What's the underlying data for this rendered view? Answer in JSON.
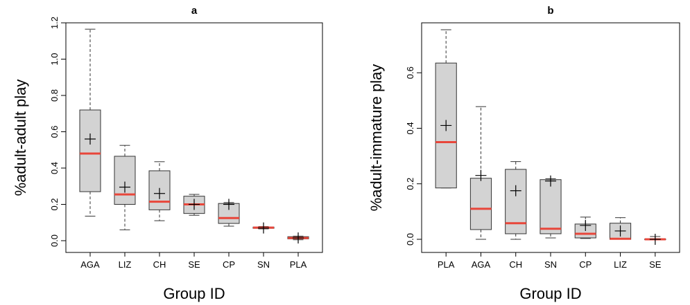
{
  "colors": {
    "box_fill": "#d3d3d3",
    "median": "#e8463a",
    "stroke": "#333333"
  },
  "chart_data": [
    {
      "type": "box",
      "title": "a",
      "xlabel": "Group ID",
      "ylabel": "%adult-adult play",
      "ylim": [
        0,
        1.2
      ],
      "yticks": [
        "0.0",
        "0.2",
        "0.4",
        "0.6",
        "0.8",
        "1.0",
        "1.2"
      ],
      "categories": [
        "AGA",
        "LIZ",
        "CH",
        "SE",
        "CP",
        "SN",
        "PLA"
      ],
      "boxes": [
        {
          "min": 0.135,
          "q1": 0.27,
          "median": 0.48,
          "q3": 0.72,
          "max": 1.165,
          "mean": 0.56
        },
        {
          "min": 0.06,
          "q1": 0.2,
          "median": 0.255,
          "q3": 0.465,
          "max": 0.525,
          "mean": 0.295
        },
        {
          "min": 0.11,
          "q1": 0.17,
          "median": 0.215,
          "q3": 0.385,
          "max": 0.435,
          "mean": 0.26
        },
        {
          "min": 0.14,
          "q1": 0.15,
          "median": 0.2,
          "q3": 0.245,
          "max": 0.255,
          "mean": 0.2
        },
        {
          "min": 0.08,
          "q1": 0.095,
          "median": 0.125,
          "q3": 0.205,
          "max": 0.21,
          "mean": 0.2
        },
        {
          "min": 0.065,
          "q1": 0.068,
          "median": 0.072,
          "q3": 0.075,
          "max": 0.078,
          "mean": 0.07
        },
        {
          "min": 0.005,
          "q1": 0.01,
          "median": 0.015,
          "q3": 0.022,
          "max": 0.025,
          "mean": 0.015
        }
      ]
    },
    {
      "type": "box",
      "title": "b",
      "xlabel": "Group ID",
      "ylabel": "%adult-immature play",
      "ylim": [
        0,
        0.75
      ],
      "yticks": [
        "0.0",
        "0.2",
        "0.4",
        "0.6"
      ],
      "categories": [
        "PLA",
        "AGA",
        "CH",
        "SN",
        "CP",
        "LIZ",
        "SE"
      ],
      "boxes": [
        {
          "min": 0.185,
          "q1": 0.185,
          "median": 0.35,
          "q3": 0.635,
          "max": 0.755,
          "mean": 0.41
        },
        {
          "min": 0.0,
          "q1": 0.035,
          "median": 0.11,
          "q3": 0.22,
          "max": 0.478,
          "mean": 0.23
        },
        {
          "min": 0.0,
          "q1": 0.02,
          "median": 0.058,
          "q3": 0.252,
          "max": 0.28,
          "mean": 0.175
        },
        {
          "min": 0.005,
          "q1": 0.02,
          "median": 0.038,
          "q3": 0.215,
          "max": 0.218,
          "mean": 0.21
        },
        {
          "min": 0.003,
          "q1": 0.005,
          "median": 0.02,
          "q3": 0.055,
          "max": 0.08,
          "mean": 0.05
        },
        {
          "min": 0.0,
          "q1": 0.0,
          "median": 0.002,
          "q3": 0.058,
          "max": 0.078,
          "mean": 0.03
        },
        {
          "min": 0.0,
          "q1": 0.0,
          "median": 0.0,
          "q3": 0.001,
          "max": 0.01,
          "mean": 0.0
        }
      ]
    }
  ]
}
